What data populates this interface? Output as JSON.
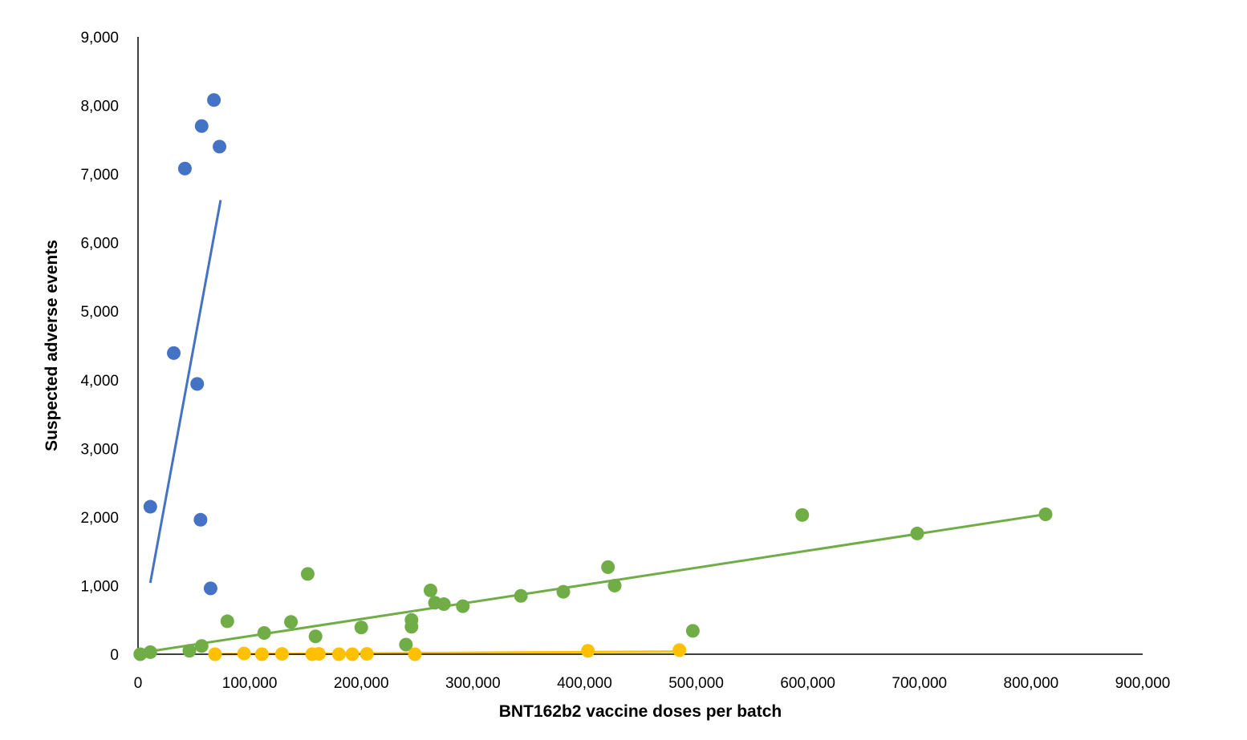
{
  "chart_data": {
    "type": "scatter",
    "title": "",
    "xlabel": "BNT162b2 vaccine doses per batch",
    "ylabel": "Suspected adverse events",
    "xlim": [
      0,
      900000
    ],
    "ylim": [
      0,
      9000
    ],
    "x_ticks": [
      0,
      100000,
      200000,
      300000,
      400000,
      500000,
      600000,
      700000,
      800000,
      900000
    ],
    "x_tick_labels": [
      "0",
      "100,000",
      "200,000",
      "300,000",
      "400,000",
      "500,000",
      "600,000",
      "700,000",
      "800,000",
      "900,000"
    ],
    "y_ticks": [
      0,
      1000,
      2000,
      3000,
      4000,
      5000,
      6000,
      7000,
      8000,
      9000
    ],
    "y_tick_labels": [
      "0",
      "1,000",
      "2,000",
      "3,000",
      "4,000",
      "5,000",
      "6,000",
      "7,000",
      "8,000",
      "9,000"
    ],
    "grid": false,
    "legend": "none",
    "series": [
      {
        "color": "#4472C4",
        "points": [
          {
            "x": 68000,
            "y": 8080
          },
          {
            "x": 57000,
            "y": 7700
          },
          {
            "x": 73000,
            "y": 7400
          },
          {
            "x": 42000,
            "y": 7080
          },
          {
            "x": 32000,
            "y": 4390
          },
          {
            "x": 53000,
            "y": 3940
          },
          {
            "x": 11000,
            "y": 2150
          },
          {
            "x": 56000,
            "y": 1960
          },
          {
            "x": 65000,
            "y": 960
          }
        ],
        "trendline": {
          "x": [
            11000,
            74000
          ],
          "y": [
            1040,
            6620
          ]
        }
      },
      {
        "color": "#70AD47",
        "points": [
          {
            "x": 2000,
            "y": 0
          },
          {
            "x": 11000,
            "y": 30
          },
          {
            "x": 46000,
            "y": 50
          },
          {
            "x": 57000,
            "y": 120
          },
          {
            "x": 80000,
            "y": 480
          },
          {
            "x": 113000,
            "y": 310
          },
          {
            "x": 137000,
            "y": 470
          },
          {
            "x": 152000,
            "y": 1170
          },
          {
            "x": 159000,
            "y": 260
          },
          {
            "x": 200000,
            "y": 390
          },
          {
            "x": 240000,
            "y": 140
          },
          {
            "x": 245000,
            "y": 400
          },
          {
            "x": 245000,
            "y": 500
          },
          {
            "x": 262000,
            "y": 930
          },
          {
            "x": 266000,
            "y": 750
          },
          {
            "x": 274000,
            "y": 730
          },
          {
            "x": 291000,
            "y": 700
          },
          {
            "x": 343000,
            "y": 850
          },
          {
            "x": 381000,
            "y": 910
          },
          {
            "x": 421000,
            "y": 1270
          },
          {
            "x": 427000,
            "y": 1000
          },
          {
            "x": 497000,
            "y": 340
          },
          {
            "x": 595000,
            "y": 2030
          },
          {
            "x": 698000,
            "y": 1760
          },
          {
            "x": 813000,
            "y": 2040
          }
        ],
        "trendline": {
          "x": [
            2000,
            813000
          ],
          "y": [
            20,
            2040
          ]
        }
      },
      {
        "color": "#FFC000",
        "points": [
          {
            "x": 69000,
            "y": 0
          },
          {
            "x": 95000,
            "y": 10
          },
          {
            "x": 111000,
            "y": 0
          },
          {
            "x": 129000,
            "y": 5
          },
          {
            "x": 156000,
            "y": 0
          },
          {
            "x": 162000,
            "y": 5
          },
          {
            "x": 180000,
            "y": 0
          },
          {
            "x": 192000,
            "y": 0
          },
          {
            "x": 205000,
            "y": 5
          },
          {
            "x": 248000,
            "y": 0
          },
          {
            "x": 403000,
            "y": 50
          },
          {
            "x": 485000,
            "y": 60
          }
        ],
        "trendline": {
          "x": [
            69000,
            485000
          ],
          "y": [
            0,
            40
          ]
        }
      }
    ]
  }
}
